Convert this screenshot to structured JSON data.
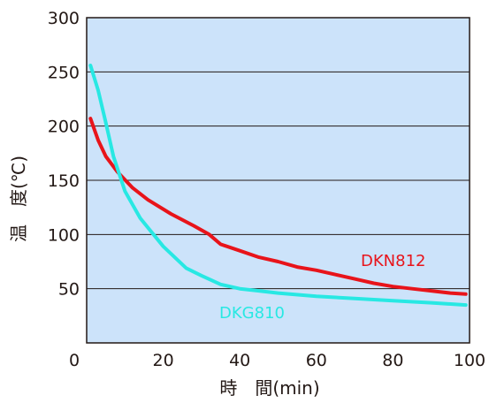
{
  "chart_data": {
    "type": "line",
    "title": "",
    "xlabel": "時　間(min)",
    "ylabel": "温　度(℃)",
    "xlim": [
      0,
      100
    ],
    "ylim": [
      0,
      300
    ],
    "xticks": [
      0,
      20,
      40,
      60,
      80,
      100
    ],
    "yticks": [
      50,
      100,
      150,
      200,
      250,
      300
    ],
    "grid": "horizontal",
    "plot_background": "#cce3fa",
    "series": [
      {
        "name": "DKN812",
        "color": "#e8141a",
        "x": [
          1,
          3,
          5,
          8,
          12,
          16,
          22,
          28,
          32,
          35,
          40,
          45,
          50,
          55,
          60,
          65,
          70,
          75,
          80,
          85,
          90,
          95,
          99
        ],
        "y": [
          207,
          187,
          172,
          158,
          143,
          132,
          119,
          108,
          100,
          91,
          85,
          79,
          75,
          70,
          67,
          63,
          59,
          55,
          52,
          50,
          48,
          46,
          45
        ]
      },
      {
        "name": "DKG810",
        "color": "#28e8e3",
        "x": [
          1,
          3,
          5,
          7,
          10,
          14,
          20,
          26,
          30,
          35,
          40,
          45,
          50,
          60,
          70,
          80,
          90,
          99
        ],
        "y": [
          256,
          233,
          203,
          172,
          140,
          115,
          89,
          69,
          62,
          54,
          50,
          48,
          46,
          43,
          41,
          39,
          37,
          35
        ]
      }
    ]
  }
}
